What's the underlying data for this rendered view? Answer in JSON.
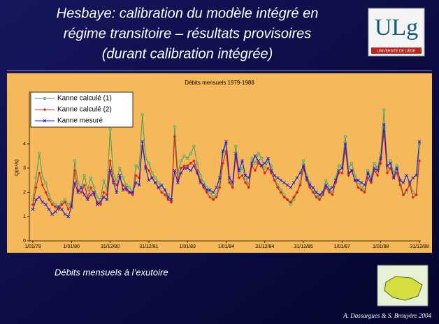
{
  "slide": {
    "title": [
      "Hesbaye: calibration du modèle intégré en",
      "régime transitoire – résultats provisoires",
      "(durant calibration intégrée)"
    ],
    "logo": {
      "text": "ULg",
      "subtitle": "UNIVERSITÉ DE LIÈGE"
    },
    "caption": "Débits mensuels à l’exutoire",
    "credit": "A. Dassargues & S. Brouyère 2004"
  },
  "chart_data": {
    "type": "line",
    "title": "Débits mensuels 1979-1988",
    "y_label": "Q(m³/s)",
    "legend": "upper left",
    "grid": false,
    "categories": [
      "1/01/79",
      null,
      null,
      null,
      null,
      null,
      null,
      null,
      null,
      null,
      null,
      null,
      "1/01/80",
      null,
      null,
      null,
      null,
      null,
      null,
      null,
      null,
      null,
      null,
      null,
      "31/12/80",
      null,
      null,
      null,
      null,
      null,
      null,
      null,
      null,
      null,
      null,
      null,
      "31/12/81",
      null,
      null,
      null,
      null,
      null,
      null,
      null,
      null,
      null,
      null,
      null,
      "1/01/83",
      null,
      null,
      null,
      null,
      null,
      null,
      null,
      null,
      null,
      null,
      null,
      "1/01/84",
      null,
      null,
      null,
      null,
      null,
      null,
      null,
      null,
      null,
      null,
      null,
      "31/12/84",
      null,
      null,
      null,
      null,
      null,
      null,
      null,
      null,
      null,
      null,
      null,
      "31/12/85",
      null,
      null,
      null,
      null,
      null,
      null,
      null,
      null,
      null,
      null,
      null,
      "1/01/87",
      null,
      null,
      null,
      null,
      null,
      null,
      null,
      null,
      null,
      null,
      null,
      "1/01/88",
      null,
      null,
      null,
      null,
      null,
      null,
      null,
      null,
      null,
      null,
      null,
      "31/12/88"
    ],
    "ylim": [
      0,
      6
    ],
    "yticks": [
      0,
      1,
      2,
      3,
      4
    ],
    "series": [
      {
        "name": "Kanne calculé (1)",
        "color": "#4e9e5a",
        "marker": "circle",
        "values": [
          1.7,
          2.6,
          3.6,
          2.6,
          2.4,
          1.9,
          1.6,
          1.5,
          1.4,
          1.6,
          1.7,
          1.5,
          1.6,
          3.3,
          2.4,
          2.2,
          2.7,
          2.1,
          2.6,
          2.2,
          1.8,
          1.7,
          2.5,
          2.1,
          4.6,
          2.7,
          2.5,
          3.0,
          2.6,
          2.3,
          2.2,
          2.0,
          3.1,
          3.0,
          5.2,
          3.4,
          3.2,
          2.8,
          2.6,
          2.4,
          2.2,
          2.1,
          1.9,
          1.6,
          4.7,
          2.8,
          3.3,
          3.5,
          3.4,
          3.6,
          3.9,
          3.2,
          2.7,
          2.4,
          2.2,
          2.0,
          1.8,
          1.9,
          2.4,
          3.6,
          4.0,
          2.5,
          2.3,
          3.9,
          2.8,
          3.0,
          2.6,
          2.3,
          3.4,
          3.2,
          3.6,
          3.4,
          3.0,
          3.3,
          3.1,
          2.6,
          2.3,
          2.1,
          1.9,
          1.7,
          1.5,
          1.7,
          2.0,
          2.4,
          3.3,
          2.7,
          2.4,
          2.1,
          1.9,
          1.8,
          2.0,
          2.5,
          2.2,
          2.0,
          2.6,
          3.1,
          3.1,
          4.3,
          3.0,
          3.2,
          2.7,
          2.4,
          2.2,
          2.1,
          2.9,
          2.6,
          3.2,
          3.0,
          3.6,
          5.4,
          3.0,
          3.3,
          2.8,
          3.1,
          2.5,
          1.9,
          2.0,
          2.4,
          2.0,
          1.9,
          4.0
        ]
      },
      {
        "name": "Kanne calculé (2)",
        "color": "#e3201b",
        "marker": "diamond",
        "values": [
          1.5,
          2.2,
          2.8,
          2.3,
          2.0,
          1.7,
          1.5,
          1.4,
          1.3,
          1.5,
          1.6,
          1.3,
          1.5,
          2.9,
          2.1,
          2.0,
          2.3,
          1.8,
          2.2,
          1.9,
          1.6,
          1.5,
          2.0,
          1.9,
          3.3,
          2.5,
          2.3,
          2.6,
          2.3,
          2.1,
          2.0,
          1.9,
          2.7,
          2.6,
          3.9,
          3.1,
          2.9,
          2.6,
          2.4,
          2.2,
          2.0,
          1.9,
          1.7,
          1.6,
          4.3,
          2.5,
          3.0,
          3.1,
          3.1,
          3.2,
          3.3,
          2.9,
          2.5,
          2.2,
          2.0,
          1.8,
          1.7,
          1.8,
          2.2,
          3.2,
          3.7,
          2.4,
          2.2,
          3.5,
          2.6,
          2.7,
          2.4,
          2.2,
          3.1,
          2.9,
          3.2,
          3.1,
          2.8,
          3.0,
          2.8,
          2.5,
          2.2,
          2.0,
          1.8,
          1.7,
          1.6,
          1.8,
          2.0,
          2.3,
          3.0,
          2.5,
          2.2,
          2.0,
          1.8,
          1.7,
          1.9,
          2.2,
          2.0,
          1.9,
          2.4,
          2.8,
          2.8,
          3.8,
          2.7,
          2.9,
          2.5,
          2.2,
          2.1,
          2.0,
          2.6,
          2.4,
          2.9,
          2.7,
          3.2,
          4.5,
          2.8,
          3.0,
          2.6,
          2.8,
          2.3,
          1.9,
          2.1,
          2.3,
          1.8,
          1.9,
          3.3
        ]
      },
      {
        "name": "Kanne mesuré",
        "color": "#1f1fd6",
        "marker": "x",
        "values": [
          1.3,
          1.7,
          1.8,
          1.6,
          1.5,
          1.3,
          1.1,
          1.2,
          1.4,
          1.3,
          1.1,
          1.0,
          1.4,
          2.4,
          2.0,
          2.2,
          1.9,
          1.7,
          1.9,
          2.0,
          1.5,
          1.6,
          1.8,
          1.7,
          2.9,
          2.4,
          2.0,
          2.7,
          2.1,
          2.2,
          2.0,
          2.0,
          2.4,
          2.3,
          4.1,
          3.0,
          2.5,
          2.6,
          2.4,
          2.2,
          2.3,
          2.1,
          1.8,
          1.7,
          2.9,
          2.4,
          2.8,
          3.0,
          3.0,
          2.9,
          3.1,
          2.8,
          2.4,
          2.3,
          2.1,
          2.1,
          2.0,
          2.2,
          2.6,
          3.7,
          4.1,
          2.6,
          2.4,
          3.6,
          2.9,
          3.3,
          2.7,
          2.6,
          3.2,
          3.5,
          3.3,
          3.1,
          3.2,
          3.4,
          2.9,
          2.7,
          2.6,
          2.5,
          2.4,
          2.3,
          2.2,
          2.4,
          2.6,
          2.8,
          3.1,
          2.6,
          2.3,
          2.2,
          2.0,
          1.9,
          2.0,
          2.3,
          2.1,
          2.2,
          2.5,
          2.9,
          3.0,
          4.0,
          2.8,
          2.9,
          2.5,
          2.5,
          2.4,
          2.3,
          2.8,
          2.5,
          3.0,
          2.9,
          3.4,
          4.8,
          3.1,
          3.2,
          2.6,
          3.0,
          2.5,
          2.4,
          2.7,
          2.4,
          2.6,
          2.7,
          4.1
        ]
      }
    ]
  }
}
